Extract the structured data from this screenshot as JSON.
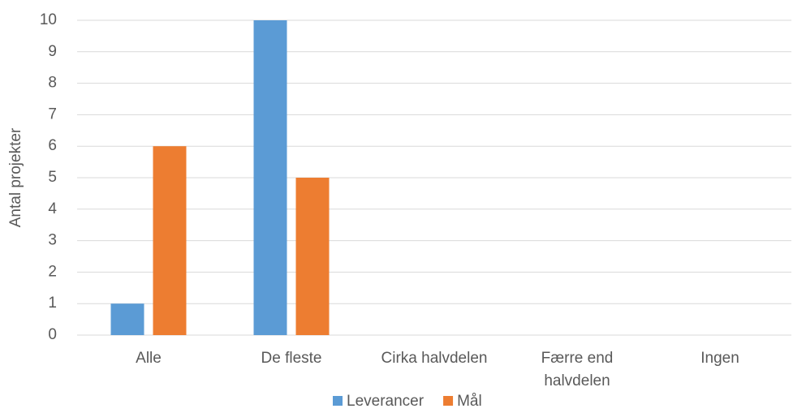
{
  "chart_data": {
    "type": "bar",
    "y_label": "Antal projekter",
    "categories": [
      "Alle",
      "De fleste",
      "Cirka halvdelen",
      "Færre end halvdelen",
      "Ingen"
    ],
    "series": [
      {
        "name": "Leverancer",
        "color": "#5b9bd5",
        "values": [
          1,
          10,
          0,
          0,
          0
        ]
      },
      {
        "name": "Mål",
        "color": "#ed7d31",
        "values": [
          6,
          5,
          0,
          0,
          0
        ]
      }
    ],
    "ylim": [
      0,
      10
    ],
    "yticks": [
      0,
      1,
      2,
      3,
      4,
      5,
      6,
      7,
      8,
      9,
      10
    ],
    "grid": true,
    "legend": "bottom"
  }
}
